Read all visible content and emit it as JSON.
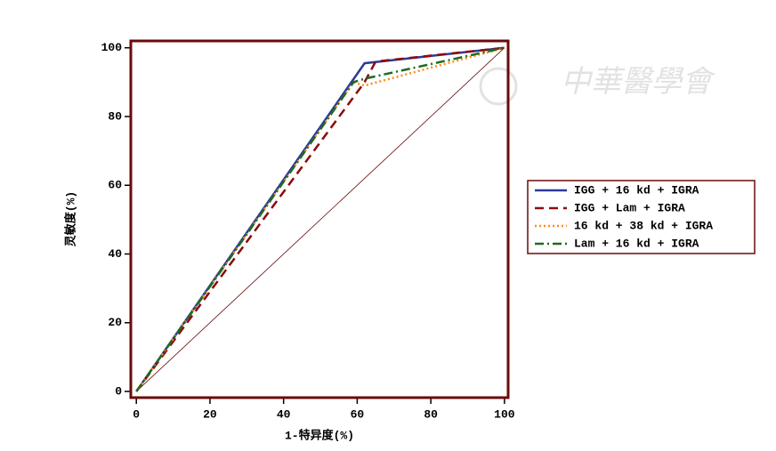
{
  "chart_data": {
    "type": "line",
    "xlabel": "1-特异度(%)",
    "ylabel": "灵敏度(%)",
    "watermark": "中華醫學會",
    "xlim": [
      -1.5,
      101
    ],
    "ylim": [
      -1.8,
      102
    ],
    "xticks": [
      0,
      20,
      40,
      60,
      80,
      100
    ],
    "yticks": [
      0,
      20,
      40,
      60,
      80,
      100
    ],
    "grid": false,
    "legend": "right",
    "diagonal": true,
    "frame_color": "#6b0a0a",
    "series": [
      {
        "name": "IGG + 16 kd + IGRA",
        "color": "#2b3a9a",
        "dash": "solid",
        "x": [
          0,
          62,
          100
        ],
        "values": [
          0,
          95.5,
          100
        ]
      },
      {
        "name": "IGG + Lam + IGRA",
        "color": "#8b0c0c",
        "dash": "dashed",
        "x": [
          0,
          62,
          65,
          100
        ],
        "values": [
          0,
          90,
          96,
          100
        ]
      },
      {
        "name": "16 kd + 38 kd + IGRA",
        "color": "#ff8c1a",
        "dash": "dotted",
        "x": [
          0,
          59,
          62,
          100
        ],
        "values": [
          0,
          90,
          89,
          100
        ]
      },
      {
        "name": "Lam + 16 kd + IGRA",
        "color": "#1f6b1f",
        "dash": "dashdot",
        "x": [
          0,
          59,
          62,
          100
        ],
        "values": [
          0,
          90,
          91,
          100
        ]
      }
    ]
  }
}
